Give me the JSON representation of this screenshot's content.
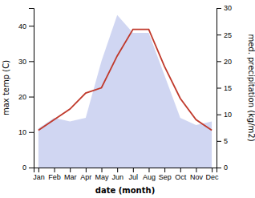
{
  "chart_data": {
    "type": "area",
    "x_label": "date (month)",
    "y_label": "max temp (C)",
    "y2_label": "med. precipitation (kg/m2)",
    "categories": [
      "Jan",
      "Feb",
      "Mar",
      "Apr",
      "May",
      "Jun",
      "Jul",
      "Aug",
      "Sep",
      "Oct",
      "Nov",
      "Dec"
    ],
    "series": [
      {
        "type": "area",
        "color": "#aab4e8",
        "values": [
          11,
          14,
          13,
          14,
          30,
          43,
          38,
          38,
          26,
          14,
          12,
          13
        ]
      },
      {
        "type": "line",
        "color": "#c0392b",
        "axis": "y2",
        "values": [
          7,
          9,
          11,
          14,
          15,
          21,
          26,
          26,
          19,
          13,
          9,
          7
        ]
      }
    ],
    "ylim": [
      0,
      45
    ],
    "yticks": [
      0,
      10,
      20,
      30,
      40
    ],
    "y2lim": [
      0,
      30
    ],
    "y2ticks": [
      0,
      5,
      10,
      15,
      20,
      25,
      30
    ]
  }
}
